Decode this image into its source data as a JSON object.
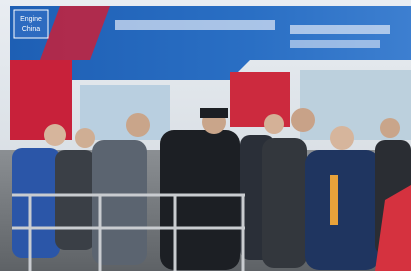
{
  "scene": {
    "logo": {
      "line1": "Engine",
      "line2": "China"
    }
  }
}
